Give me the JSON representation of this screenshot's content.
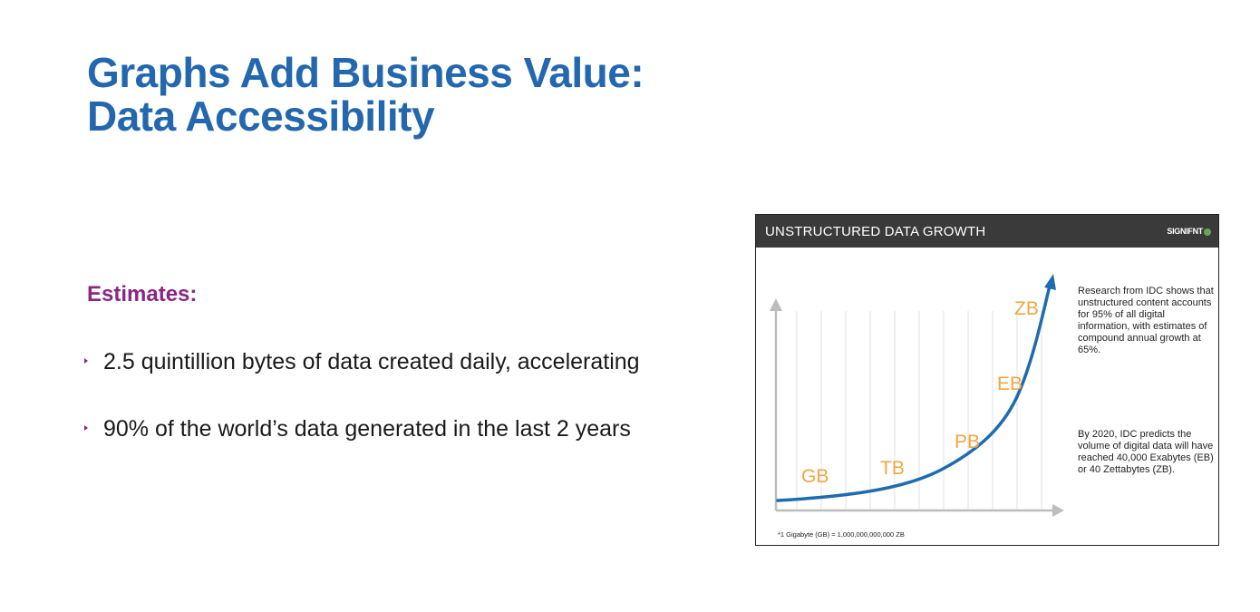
{
  "slide": {
    "title_line1": "Graphs Add Business Value:",
    "title_line2": "Data Accessibility",
    "estimates_heading": "Estimates:",
    "bullets": [
      "2.5 quintillion bytes of data created daily, accelerating",
      "90% of the world’s data generated in the last 2 years"
    ]
  },
  "figure": {
    "header_title": "UNSTRUCTURED DATA GROWTH",
    "logo_text": "SIGNIFNT",
    "paragraph1": "Research from IDC shows that unstructured content accounts for 95% of all digital information, with estimates of compound annual growth at 65%.",
    "paragraph2": "By 2020, IDC predicts the volume of digital data will have reached 40,000 Exabytes (EB) or 40 Zettabytes (ZB).",
    "footnote": "*1 Gigabyte (GB) = 1,000,000,000,000 ZB",
    "curve_labels": [
      "GB",
      "TB",
      "PB",
      "EB",
      "ZB"
    ]
  },
  "colors": {
    "title": "#2367ae",
    "accent": "#8b2685",
    "curve": "#1f6bb0",
    "curve_label": "#f2a541",
    "header_bg": "#3a3a3a"
  }
}
